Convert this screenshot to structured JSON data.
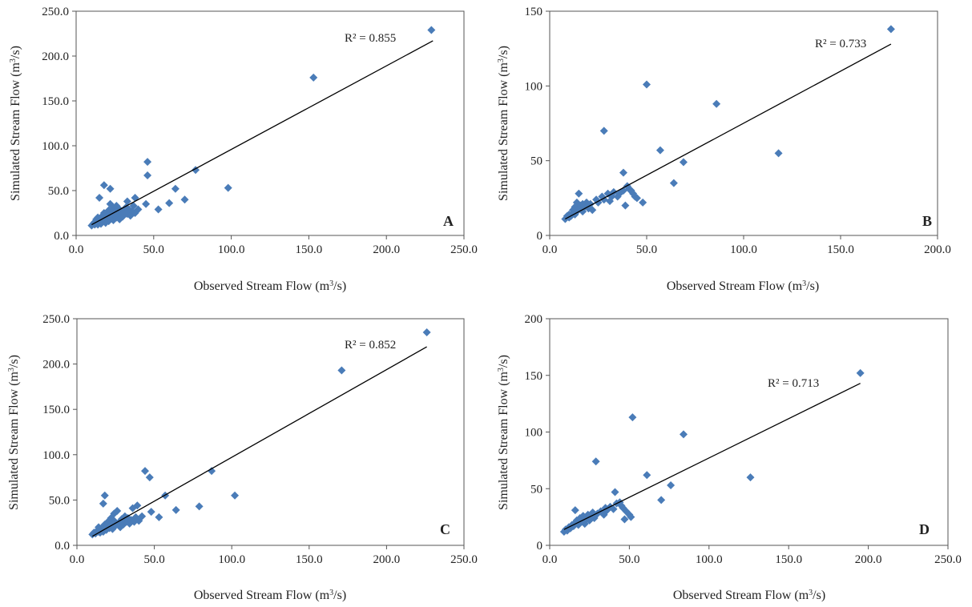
{
  "figure": {
    "marker_color": "#4A7CB8",
    "line_color": "#000000",
    "axis_color": "#555555"
  },
  "chart_data": [
    {
      "type": "scatter",
      "panel_label": "A",
      "xlabel": "Observed Stream Flow (m3/s)",
      "ylabel": "Simulated Stream Flow  (m3/s)",
      "xlim": [
        0,
        250
      ],
      "ylim": [
        0,
        250
      ],
      "xticks": [
        "0.0",
        "50.0",
        "100.0",
        "150.0",
        "200.0",
        "250.0"
      ],
      "yticks": [
        "0.0",
        "50.0",
        "100.0",
        "150.0",
        "200.0",
        "250.0"
      ],
      "r2_label": "R² = 0.855",
      "trendline": {
        "x": [
          10,
          230
        ],
        "y": [
          12,
          217
        ]
      },
      "points": [
        [
          10,
          11
        ],
        [
          11,
          13
        ],
        [
          12,
          12
        ],
        [
          12,
          15
        ],
        [
          13,
          18
        ],
        [
          13,
          14
        ],
        [
          14,
          12
        ],
        [
          14,
          20
        ],
        [
          15,
          16
        ],
        [
          15,
          14
        ],
        [
          16,
          19
        ],
        [
          16,
          13
        ],
        [
          17,
          22
        ],
        [
          17,
          15
        ],
        [
          18,
          17
        ],
        [
          18,
          25
        ],
        [
          19,
          20
        ],
        [
          19,
          14
        ],
        [
          20,
          23
        ],
        [
          20,
          18
        ],
        [
          21,
          16
        ],
        [
          21,
          28
        ],
        [
          22,
          21
        ],
        [
          22,
          35
        ],
        [
          23,
          19
        ],
        [
          23,
          24
        ],
        [
          24,
          17
        ],
        [
          24,
          30
        ],
        [
          25,
          22
        ],
        [
          25,
          26
        ],
        [
          26,
          20
        ],
        [
          26,
          33
        ],
        [
          27,
          24
        ],
        [
          28,
          18
        ],
        [
          28,
          29
        ],
        [
          29,
          23
        ],
        [
          30,
          27
        ],
        [
          30,
          21
        ],
        [
          31,
          25
        ],
        [
          32,
          31
        ],
        [
          33,
          24
        ],
        [
          34,
          29
        ],
        [
          35,
          22
        ],
        [
          36,
          27
        ],
        [
          37,
          33
        ],
        [
          38,
          25
        ],
        [
          38,
          42
        ],
        [
          40,
          29
        ],
        [
          15,
          42
        ],
        [
          18,
          56
        ],
        [
          22,
          52
        ],
        [
          33,
          38
        ],
        [
          45,
          35
        ],
        [
          46,
          82
        ],
        [
          46,
          67
        ],
        [
          53,
          29
        ],
        [
          60,
          36
        ],
        [
          64,
          52
        ],
        [
          70,
          40
        ],
        [
          77,
          73
        ],
        [
          98,
          53
        ],
        [
          153,
          176
        ],
        [
          229,
          229
        ]
      ]
    },
    {
      "type": "scatter",
      "panel_label": "B",
      "xlabel": "Observed Stream Flow (m3/s)",
      "ylabel": "Simulated Stream Flow  (m3/s)",
      "xlim": [
        0,
        200
      ],
      "ylim": [
        0,
        150
      ],
      "xticks": [
        "0.0",
        "50.0",
        "100.0",
        "150.0",
        "200.0"
      ],
      "yticks": [
        "0",
        "50",
        "100",
        "150"
      ],
      "r2_label": "R² = 0.733",
      "trendline": {
        "x": [
          8,
          176
        ],
        "y": [
          11,
          128
        ]
      },
      "points": [
        [
          8,
          11
        ],
        [
          9,
          13
        ],
        [
          10,
          12
        ],
        [
          10,
          14
        ],
        [
          11,
          13
        ],
        [
          12,
          15
        ],
        [
          12,
          17
        ],
        [
          13,
          14
        ],
        [
          13,
          19
        ],
        [
          14,
          16
        ],
        [
          14,
          22
        ],
        [
          15,
          18
        ],
        [
          15,
          28
        ],
        [
          16,
          20
        ],
        [
          17,
          16
        ],
        [
          17,
          21
        ],
        [
          18,
          19
        ],
        [
          19,
          22
        ],
        [
          20,
          18
        ],
        [
          21,
          21
        ],
        [
          22,
          17
        ],
        [
          24,
          24
        ],
        [
          25,
          22
        ],
        [
          27,
          26
        ],
        [
          28,
          24
        ],
        [
          30,
          28
        ],
        [
          31,
          23
        ],
        [
          32,
          26
        ],
        [
          33,
          29
        ],
        [
          35,
          26
        ],
        [
          36,
          28
        ],
        [
          38,
          30
        ],
        [
          40,
          33
        ],
        [
          41,
          31
        ],
        [
          42,
          30
        ],
        [
          43,
          28
        ],
        [
          44,
          26
        ],
        [
          45,
          25
        ],
        [
          48,
          22
        ],
        [
          39,
          20
        ],
        [
          38,
          42
        ],
        [
          28,
          70
        ],
        [
          50,
          101
        ],
        [
          57,
          57
        ],
        [
          64,
          35
        ],
        [
          69,
          49
        ],
        [
          86,
          88
        ],
        [
          118,
          55
        ],
        [
          176,
          138
        ]
      ]
    },
    {
      "type": "scatter",
      "panel_label": "C",
      "xlabel": "Observed Stream Flow (m3/s)",
      "ylabel": "Simulated Stream Flow  (m3/s)",
      "xlim": [
        0,
        250
      ],
      "ylim": [
        0,
        250
      ],
      "xticks": [
        "0.0",
        "50.0",
        "100.0",
        "150.0",
        "200.0",
        "250.0"
      ],
      "yticks": [
        "0.0",
        "50.0",
        "100.0",
        "150.0",
        "200.0",
        "250.0"
      ],
      "r2_label": "R² = 0.852",
      "trendline": {
        "x": [
          10,
          226
        ],
        "y": [
          10,
          219
        ]
      },
      "points": [
        [
          10,
          12
        ],
        [
          11,
          14
        ],
        [
          12,
          13
        ],
        [
          13,
          16
        ],
        [
          14,
          20
        ],
        [
          14,
          15
        ],
        [
          15,
          14
        ],
        [
          16,
          18
        ],
        [
          17,
          21
        ],
        [
          17,
          15
        ],
        [
          18,
          23
        ],
        [
          19,
          17
        ],
        [
          19,
          20
        ],
        [
          20,
          26
        ],
        [
          21,
          19
        ],
        [
          22,
          24
        ],
        [
          22,
          30
        ],
        [
          23,
          18
        ],
        [
          24,
          27
        ],
        [
          24,
          35
        ],
        [
          25,
          22
        ],
        [
          26,
          38
        ],
        [
          27,
          25
        ],
        [
          28,
          20
        ],
        [
          29,
          29
        ],
        [
          30,
          23
        ],
        [
          31,
          32
        ],
        [
          32,
          26
        ],
        [
          33,
          30
        ],
        [
          34,
          24
        ],
        [
          35,
          28
        ],
        [
          36,
          41
        ],
        [
          37,
          26
        ],
        [
          38,
          31
        ],
        [
          39,
          44
        ],
        [
          40,
          27
        ],
        [
          42,
          32
        ],
        [
          17,
          46
        ],
        [
          18,
          55
        ],
        [
          44,
          82
        ],
        [
          47,
          75
        ],
        [
          48,
          37
        ],
        [
          53,
          31
        ],
        [
          57,
          55
        ],
        [
          64,
          39
        ],
        [
          79,
          43
        ],
        [
          87,
          82
        ],
        [
          102,
          55
        ],
        [
          171,
          193
        ],
        [
          226,
          235
        ]
      ]
    },
    {
      "type": "scatter",
      "panel_label": "D",
      "xlabel": "Observed Stream Flow (m3/s)",
      "ylabel": "Simulated Stream Flow  (m3/s)",
      "xlim": [
        0,
        250
      ],
      "ylim": [
        0,
        200
      ],
      "xticks": [
        "0.0",
        "50.0",
        "100.0",
        "150.0",
        "200.0",
        "250.0"
      ],
      "yticks": [
        "0",
        "50",
        "100",
        "150",
        "200"
      ],
      "r2_label": "R² = 0.713",
      "trendline": {
        "x": [
          9,
          195
        ],
        "y": [
          14,
          143
        ]
      },
      "points": [
        [
          9,
          12
        ],
        [
          10,
          14
        ],
        [
          11,
          13
        ],
        [
          12,
          16
        ],
        [
          13,
          15
        ],
        [
          14,
          18
        ],
        [
          15,
          17
        ],
        [
          16,
          20
        ],
        [
          16,
          31
        ],
        [
          17,
          22
        ],
        [
          18,
          18
        ],
        [
          19,
          24
        ],
        [
          20,
          21
        ],
        [
          21,
          26
        ],
        [
          22,
          19
        ],
        [
          23,
          23
        ],
        [
          24,
          27
        ],
        [
          25,
          22
        ],
        [
          26,
          25
        ],
        [
          27,
          29
        ],
        [
          28,
          24
        ],
        [
          30,
          28
        ],
        [
          32,
          30
        ],
        [
          34,
          27
        ],
        [
          35,
          33
        ],
        [
          36,
          31
        ],
        [
          38,
          34
        ],
        [
          40,
          32
        ],
        [
          42,
          37
        ],
        [
          44,
          38
        ],
        [
          45,
          35
        ],
        [
          46,
          33
        ],
        [
          47,
          23
        ],
        [
          48,
          30
        ],
        [
          50,
          27
        ],
        [
          51,
          25
        ],
        [
          29,
          74
        ],
        [
          41,
          47
        ],
        [
          52,
          113
        ],
        [
          61,
          62
        ],
        [
          70,
          40
        ],
        [
          76,
          53
        ],
        [
          84,
          98
        ],
        [
          126,
          60
        ],
        [
          195,
          152
        ]
      ]
    }
  ]
}
